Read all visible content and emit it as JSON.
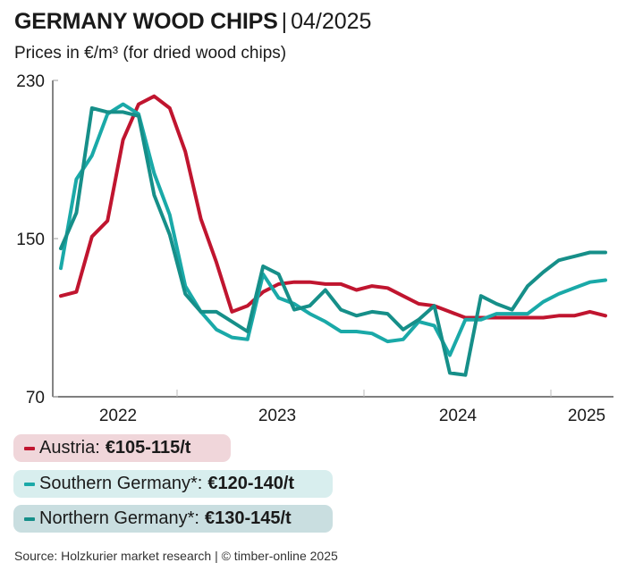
{
  "header": {
    "title": "GERMANY WOOD CHIPS",
    "separator": "|",
    "date": "04/2025",
    "subtitle": "Prices in €/m³ (for dried wood chips)"
  },
  "legend": [
    {
      "label": "Austria:",
      "range": "€105-115/t",
      "color": "#c0152f"
    },
    {
      "label": "Southern Germany*:",
      "range": "€120-140/t",
      "color": "#1aa9a8"
    },
    {
      "label": "Northern Germany*:",
      "range": "€130-145/t",
      "color": "#168f89"
    }
  ],
  "source": "Source: Holzkurier market research | © timber-online 2025",
  "chart_data": {
    "type": "line",
    "title": "GERMANY WOOD CHIPS | 04/2025",
    "subtitle": "Prices in €/m³ (for dried wood chips)",
    "xlabel": "",
    "ylabel": "Prices in €/m³",
    "ylim": [
      70,
      230
    ],
    "yticks": [
      70,
      150,
      230
    ],
    "xtick_labels": [
      "2022",
      "2023",
      "2024",
      "2025"
    ],
    "grid": false,
    "legend_position": "bottom",
    "x": [
      "2022-01",
      "2022-02",
      "2022-03",
      "2022-04",
      "2022-05",
      "2022-06",
      "2022-07",
      "2022-08",
      "2022-09",
      "2022-10",
      "2022-11",
      "2022-12",
      "2023-01",
      "2023-02",
      "2023-03",
      "2023-04",
      "2023-05",
      "2023-06",
      "2023-07",
      "2023-08",
      "2023-09",
      "2023-10",
      "2023-11",
      "2023-12",
      "2024-01",
      "2024-02",
      "2024-03",
      "2024-04",
      "2024-05",
      "2024-06",
      "2024-07",
      "2024-08",
      "2024-09",
      "2024-10",
      "2024-11",
      "2024-12"
    ],
    "series": [
      {
        "name": "Austria",
        "color": "#c0152f",
        "values": [
          121,
          123,
          151,
          159,
          200,
          218,
          222,
          216,
          194,
          160,
          138,
          113,
          116,
          123,
          127,
          128,
          128,
          127,
          127,
          124,
          126,
          125,
          121,
          117,
          116,
          113,
          110,
          110,
          110,
          110,
          110,
          110,
          111,
          111,
          113,
          111
        ]
      },
      {
        "name": "Southern Germany*",
        "color": "#1aa9a8",
        "values": [
          135,
          180,
          192,
          213,
          218,
          213,
          183,
          162,
          126,
          113,
          104,
          100,
          99,
          132,
          120,
          117,
          112,
          108,
          103,
          103,
          102,
          98,
          99,
          108,
          106,
          91,
          109,
          109,
          112,
          112,
          112,
          118,
          122,
          125,
          128,
          129
        ]
      },
      {
        "name": "Northern Germany*",
        "color": "#168f89",
        "values": [
          145,
          163,
          216,
          214,
          214,
          212,
          172,
          152,
          122,
          113,
          113,
          108,
          103,
          136,
          132,
          114,
          116,
          124,
          114,
          111,
          113,
          112,
          104,
          109,
          116,
          82,
          81,
          121,
          117,
          114,
          126,
          133,
          139,
          141,
          143,
          143
        ]
      }
    ]
  }
}
